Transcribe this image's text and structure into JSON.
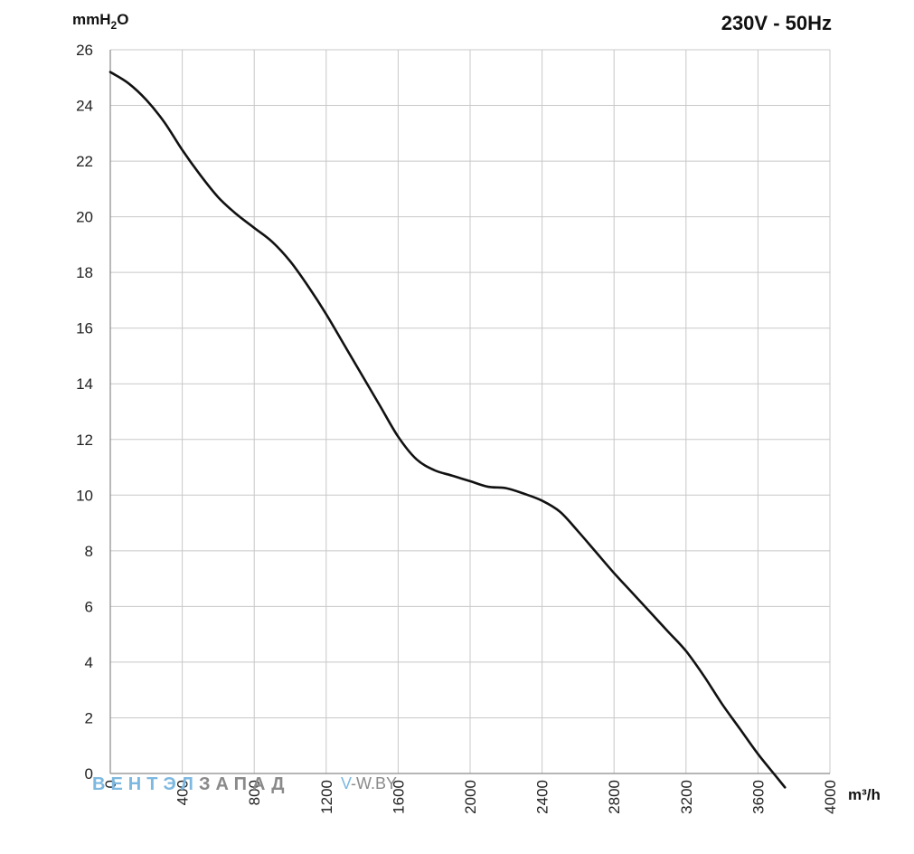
{
  "chart_data": {
    "type": "line",
    "title": "230V - 50Hz",
    "ylabel": "mmH",
    "ylabel_sub": "2",
    "ylabel_end": "O",
    "xlabel": "m³/h",
    "xlim": [
      0,
      4000
    ],
    "ylim": [
      0,
      26
    ],
    "xticks": [
      0,
      400,
      800,
      1200,
      1600,
      2000,
      2400,
      2800,
      3200,
      3600,
      4000
    ],
    "yticks": [
      0,
      2,
      4,
      6,
      8,
      10,
      12,
      14,
      16,
      18,
      20,
      22,
      24,
      26
    ],
    "grid": true,
    "series": [
      {
        "color": "#111111",
        "x": [
          0,
          100,
          200,
          300,
          400,
          500,
          600,
          700,
          800,
          900,
          1000,
          1100,
          1200,
          1300,
          1400,
          1500,
          1600,
          1700,
          1800,
          1900,
          2000,
          2100,
          2200,
          2300,
          2400,
          2500,
          2600,
          2700,
          2800,
          2900,
          3000,
          3100,
          3200,
          3300,
          3400,
          3500,
          3600,
          3700,
          3750
        ],
        "y": [
          25.2,
          24.8,
          24.2,
          23.4,
          22.4,
          21.5,
          20.7,
          20.1,
          19.6,
          19.1,
          18.4,
          17.5,
          16.5,
          15.4,
          14.3,
          13.2,
          12.1,
          11.3,
          10.9,
          10.7,
          10.5,
          10.3,
          10.25,
          10.05,
          9.8,
          9.4,
          8.7,
          7.95,
          7.2,
          6.5,
          5.8,
          5.1,
          4.4,
          3.5,
          2.5,
          1.6,
          0.7,
          -0.1,
          -0.5
        ]
      }
    ]
  },
  "watermark": {
    "part1": "ВЕНТЭЛ",
    "part2": "ЗАПАД",
    "part3_prefix": "V",
    "part3_rest": "-W.BY",
    "color1": "#7db8e0",
    "color2": "#8a8a8a"
  }
}
